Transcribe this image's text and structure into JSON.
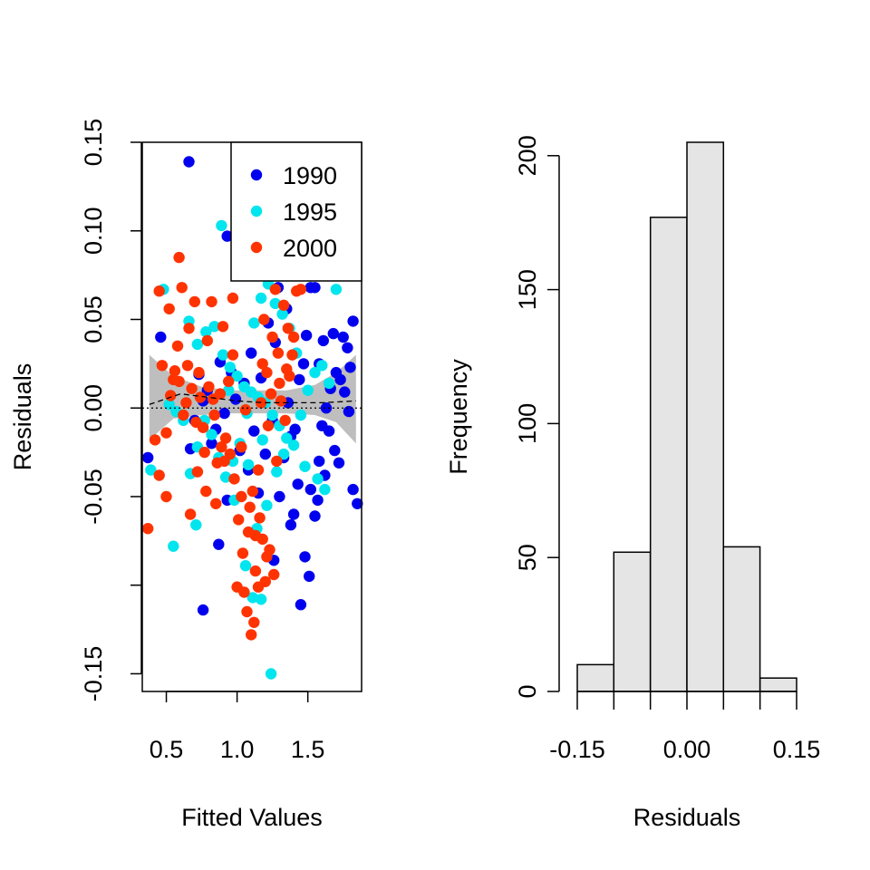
{
  "chart_data": [
    {
      "type": "scatter",
      "xlabel": "Fitted Values",
      "ylabel": "Residuals",
      "xlim": [
        0.33,
        1.88
      ],
      "ylim": [
        -0.16,
        0.15
      ],
      "x_ticks": [
        0.5,
        1.0,
        1.5
      ],
      "x_tick_labels": [
        "0.5",
        "1.0",
        "1.5"
      ],
      "y_ticks": [
        -0.15,
        -0.05,
        0.0,
        0.05,
        0.1,
        0.15
      ],
      "y_tick_labels": [
        "-0.15",
        "-0.05",
        "0.00",
        "0.05",
        "0.10",
        "0.15"
      ],
      "y_minor_ticks": [
        -0.1
      ],
      "legend_position": "top-right",
      "reference_line": 0.0,
      "band": {
        "x": [
          0.38,
          0.55,
          0.75,
          0.95,
          1.15,
          1.35,
          1.55,
          1.7,
          1.84
        ],
        "lower": [
          -0.018,
          -0.006,
          -0.004,
          -0.003,
          -0.003,
          -0.003,
          -0.004,
          -0.008,
          -0.02
        ],
        "upper": [
          0.03,
          0.018,
          0.012,
          0.01,
          0.01,
          0.01,
          0.013,
          0.02,
          0.03
        ]
      },
      "smooth_line": {
        "x": [
          0.38,
          0.6,
          0.8,
          1.0,
          1.2,
          1.4,
          1.6,
          1.84
        ],
        "y": [
          0.002,
          0.008,
          0.006,
          0.004,
          0.003,
          0.003,
          0.003,
          0.004
        ]
      },
      "series": [
        {
          "name": "1990",
          "color": "#0000ee",
          "points": [
            [
              0.66,
              0.139
            ],
            [
              0.93,
              0.097
            ],
            [
              0.37,
              -0.028
            ],
            [
              0.76,
              -0.114
            ],
            [
              0.87,
              -0.077
            ],
            [
              0.46,
              0.04
            ],
            [
              1.45,
              -0.111
            ],
            [
              1.48,
              -0.084
            ],
            [
              1.51,
              -0.095
            ],
            [
              1.4,
              -0.06
            ],
            [
              1.38,
              -0.066
            ],
            [
              1.43,
              -0.043
            ],
            [
              1.52,
              -0.046
            ],
            [
              1.55,
              -0.061
            ],
            [
              1.57,
              -0.052
            ],
            [
              1.6,
              -0.01
            ],
            [
              1.63,
              0.0
            ],
            [
              1.66,
              0.011
            ],
            [
              1.7,
              0.02
            ],
            [
              1.73,
              0.016
            ],
            [
              1.76,
              0.009
            ],
            [
              1.79,
              -0.002
            ],
            [
              1.82,
              0.049
            ],
            [
              1.85,
              -0.054
            ],
            [
              1.82,
              -0.046
            ],
            [
              1.78,
              0.034
            ],
            [
              1.75,
              0.04
            ],
            [
              1.72,
              -0.031
            ],
            [
              1.68,
              0.042
            ],
            [
              1.65,
              -0.013
            ],
            [
              1.62,
              -0.038
            ],
            [
              1.58,
              -0.03
            ],
            [
              1.55,
              0.068
            ],
            [
              1.52,
              0.068
            ],
            [
              1.49,
              0.041
            ],
            [
              1.47,
              0.025
            ],
            [
              1.44,
              0.016
            ],
            [
              1.41,
              -0.012
            ],
            [
              1.38,
              -0.016
            ],
            [
              1.36,
              0.003
            ],
            [
              1.33,
              -0.028
            ],
            [
              1.3,
              -0.05
            ],
            [
              1.27,
              0.037
            ],
            [
              1.25,
              -0.007
            ],
            [
              1.22,
              0.048
            ],
            [
              1.2,
              -0.026
            ],
            [
              1.17,
              0.017
            ],
            [
              1.15,
              -0.048
            ],
            [
              1.12,
              -0.013
            ],
            [
              1.1,
              0.031
            ],
            [
              1.08,
              -0.035
            ],
            [
              1.05,
              0.014
            ],
            [
              1.02,
              -0.024
            ],
            [
              0.99,
              0.005
            ],
            [
              0.96,
              0.02
            ],
            [
              0.93,
              -0.052
            ],
            [
              0.91,
              -0.003
            ],
            [
              0.88,
              0.026
            ],
            [
              0.85,
              -0.012
            ],
            [
              0.82,
              -0.02
            ],
            [
              0.79,
              0.01
            ],
            [
              0.76,
              0.004
            ],
            [
              0.73,
              0.019
            ],
            [
              0.7,
              -0.007
            ],
            [
              0.67,
              -0.023
            ],
            [
              1.29,
              0.068
            ],
            [
              1.35,
              0.056
            ],
            [
              1.58,
              0.025
            ],
            [
              1.61,
              0.038
            ],
            [
              1.69,
              -0.024
            ],
            [
              1.8,
              0.023
            ],
            [
              1.26,
              -0.086
            ]
          ]
        },
        {
          "name": "1995",
          "color": "#00e5ee",
          "points": [
            [
              0.89,
              0.103
            ],
            [
              0.39,
              -0.035
            ],
            [
              0.55,
              -0.078
            ],
            [
              0.71,
              -0.066
            ],
            [
              1.11,
              -0.107
            ],
            [
              1.17,
              -0.108
            ],
            [
              1.24,
              -0.15
            ],
            [
              1.06,
              -0.089
            ],
            [
              0.66,
              0.049
            ],
            [
              0.72,
              0.036
            ],
            [
              0.78,
              0.043
            ],
            [
              0.84,
              0.046
            ],
            [
              0.9,
              0.03
            ],
            [
              0.95,
              0.023
            ],
            [
              1.0,
              0.018
            ],
            [
              1.05,
              0.012
            ],
            [
              1.1,
              0.009
            ],
            [
              1.15,
              0.006
            ],
            [
              1.2,
              0.003
            ],
            [
              1.25,
              -0.004
            ],
            [
              1.3,
              -0.01
            ],
            [
              1.35,
              -0.017
            ],
            [
              1.4,
              -0.021
            ],
            [
              1.45,
              -0.004
            ],
            [
              1.5,
              0.01
            ],
            [
              1.55,
              0.02
            ],
            [
              1.6,
              0.024
            ],
            [
              1.65,
              0.014
            ],
            [
              1.7,
              0.067
            ],
            [
              1.62,
              -0.046
            ],
            [
              1.57,
              -0.04
            ],
            [
              1.48,
              -0.033
            ],
            [
              1.42,
              0.031
            ],
            [
              1.37,
              0.045
            ],
            [
              1.32,
              0.053
            ],
            [
              1.27,
              0.059
            ],
            [
              1.22,
              0.07
            ],
            [
              1.17,
              0.062
            ],
            [
              1.12,
              0.048
            ],
            [
              1.07,
              -0.003
            ],
            [
              1.02,
              -0.02
            ],
            [
              0.97,
              -0.03
            ],
            [
              0.92,
              -0.039
            ],
            [
              0.87,
              -0.028
            ],
            [
              0.82,
              -0.015
            ],
            [
              0.77,
              -0.007
            ],
            [
              0.72,
              -0.022
            ],
            [
              0.67,
              -0.037
            ],
            [
              0.62,
              -0.007
            ],
            [
              0.57,
              -0.002
            ],
            [
              0.52,
              0.002
            ],
            [
              0.48,
              0.067
            ],
            [
              1.14,
              -0.068
            ],
            [
              1.21,
              -0.055
            ],
            [
              1.28,
              -0.036
            ],
            [
              1.33,
              -0.026
            ],
            [
              1.18,
              -0.018
            ],
            [
              1.08,
              -0.032
            ],
            [
              0.98,
              -0.052
            ],
            [
              0.94,
              0.01
            ]
          ]
        },
        {
          "name": "2000",
          "color": "#ff3300",
          "points": [
            [
              0.59,
              0.085
            ],
            [
              0.37,
              -0.068
            ],
            [
              0.45,
              0.066
            ],
            [
              0.42,
              -0.018
            ],
            [
              0.45,
              -0.038
            ],
            [
              0.5,
              -0.05
            ],
            [
              0.52,
              0.056
            ],
            [
              0.55,
              0.016
            ],
            [
              0.58,
              0.035
            ],
            [
              0.61,
              0.068
            ],
            [
              0.64,
              0.003
            ],
            [
              0.67,
              -0.06
            ],
            [
              0.7,
              0.06
            ],
            [
              0.73,
              0.02
            ],
            [
              0.76,
              -0.011
            ],
            [
              0.79,
              0.038
            ],
            [
              0.82,
              0.06
            ],
            [
              0.85,
              -0.054
            ],
            [
              0.88,
              0.008
            ],
            [
              0.91,
              -0.03
            ],
            [
              0.94,
              0.015
            ],
            [
              0.97,
              0.062
            ],
            [
              1.0,
              -0.101
            ],
            [
              1.03,
              -0.022
            ],
            [
              1.06,
              -0.001
            ],
            [
              1.09,
              -0.056
            ],
            [
              1.12,
              -0.121
            ],
            [
              1.15,
              -0.035
            ],
            [
              1.18,
              0.025
            ],
            [
              1.21,
              -0.084
            ],
            [
              1.24,
              0.008
            ],
            [
              1.27,
              0.067
            ],
            [
              1.3,
              0.014
            ],
            [
              1.33,
              0.058
            ],
            [
              1.36,
              0.045
            ],
            [
              1.39,
              0.03
            ],
            [
              1.42,
              0.066
            ],
            [
              1.45,
              0.067
            ],
            [
              1.4,
              0.04
            ],
            [
              1.37,
              0.018
            ],
            [
              1.34,
              -0.007
            ],
            [
              1.31,
              0.004
            ],
            [
              1.28,
              -0.03
            ],
            [
              1.25,
              0.04
            ],
            [
              1.22,
              -0.01
            ],
            [
              1.19,
              0.05
            ],
            [
              1.16,
              -0.062
            ],
            [
              1.13,
              -0.092
            ],
            [
              1.1,
              -0.128
            ],
            [
              1.07,
              -0.115
            ],
            [
              1.04,
              -0.082
            ],
            [
              1.01,
              -0.063
            ],
            [
              0.98,
              -0.04
            ],
            [
              0.95,
              -0.026
            ],
            [
              0.92,
              -0.017
            ],
            [
              0.89,
              -0.022
            ],
            [
              0.86,
              -0.031
            ],
            [
              0.83,
              0.005
            ],
            [
              0.8,
              0.012
            ],
            [
              0.77,
              -0.025
            ],
            [
              0.74,
              0.006
            ],
            [
              0.71,
              -0.008
            ],
            [
              0.68,
              0.011
            ],
            [
              0.65,
              0.024
            ],
            [
              0.62,
              -0.004
            ],
            [
              0.59,
              0.015
            ],
            [
              0.56,
              0.021
            ],
            [
              0.53,
              0.007
            ],
            [
              0.5,
              -0.014
            ],
            [
              0.47,
              0.024
            ],
            [
              1.08,
              -0.07
            ],
            [
              1.13,
              -0.072
            ],
            [
              1.18,
              -0.074
            ],
            [
              1.23,
              -0.08
            ],
            [
              1.26,
              -0.094
            ],
            [
              1.2,
              -0.098
            ],
            [
              1.15,
              -0.101
            ],
            [
              1.05,
              -0.104
            ],
            [
              1.03,
              -0.05
            ],
            [
              1.11,
              -0.047
            ],
            [
              1.17,
              0.003
            ],
            [
              1.21,
              0.02
            ],
            [
              1.29,
              0.031
            ],
            [
              1.35,
              0.022
            ],
            [
              0.97,
              0.03
            ],
            [
              0.9,
              0.046
            ],
            [
              0.84,
              -0.004
            ],
            [
              0.78,
              -0.047
            ],
            [
              0.72,
              -0.036
            ],
            [
              0.66,
              0.045
            ]
          ]
        }
      ]
    },
    {
      "type": "bar",
      "xlabel": "Residuals",
      "ylabel": "Frequency",
      "xlim": [
        -0.15,
        0.15
      ],
      "ylim": [
        0,
        205
      ],
      "bin_edges": [
        -0.15,
        -0.1,
        -0.05,
        0.0,
        0.05,
        0.1,
        0.15
      ],
      "values": [
        10,
        52,
        177,
        205,
        54,
        5
      ],
      "x_ticks": [
        -0.15,
        -0.1,
        -0.05,
        0.0,
        0.05,
        0.1,
        0.15
      ],
      "x_tick_labels": [
        "-0.15",
        "0.00",
        "0.15"
      ],
      "x_tick_label_values": [
        -0.15,
        0.0,
        0.15
      ],
      "y_ticks": [
        0,
        50,
        100,
        150,
        200
      ],
      "y_tick_labels": [
        "0",
        "50",
        "100",
        "150",
        "200"
      ],
      "bar_color": "#e5e5e5"
    }
  ]
}
